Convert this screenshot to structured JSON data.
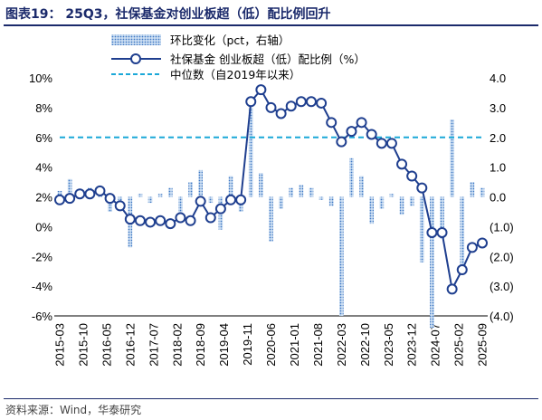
{
  "figure": {
    "title": "图表19： 25Q3，社保基金对创业板超（低）配比例回升",
    "source": "资料来源：Wind，华泰研究"
  },
  "colors": {
    "title": "#1b2a6b",
    "bar": "#6c9bd2",
    "line": "#1f3f8f",
    "marker_fill": "#ffffff",
    "median": "#1ba8d8"
  },
  "chart_data": {
    "type": "bar+line",
    "title": "",
    "legend_position": "top",
    "left_axis": {
      "range": [
        -6,
        10
      ],
      "ticks": [
        "10%",
        "8%",
        "6%",
        "4%",
        "2%",
        "0%",
        "-2%",
        "-4%",
        "-6%"
      ]
    },
    "right_axis": {
      "range": [
        -4,
        4
      ],
      "ticks": [
        "4.0",
        "3.0",
        "2.0",
        "1.0",
        "0.0",
        "(1.0)",
        "(2.0)",
        "(3.0)",
        "(4.0)"
      ]
    },
    "x": [
      "2015-03",
      "2015-06",
      "2015-09",
      "2015-12",
      "2016-03",
      "2016-06",
      "2016-09",
      "2016-12",
      "2017-03",
      "2017-06",
      "2017-09",
      "2017-12",
      "2018-03",
      "2018-06",
      "2018-09",
      "2018-12",
      "2019-03",
      "2019-06",
      "2019-09",
      "2019-12",
      "2020-03",
      "2020-06",
      "2020-09",
      "2020-12",
      "2021-03",
      "2021-06",
      "2021-09",
      "2021-12",
      "2022-03",
      "2022-06",
      "2022-09",
      "2022-12",
      "2023-03",
      "2023-06",
      "2023-09",
      "2023-12",
      "2024-03",
      "2024-06",
      "2024-09",
      "2024-12",
      "2025-03",
      "2025-06",
      "2025-09"
    ],
    "x_tick_labels": [
      "2015-03",
      "2015-10",
      "2016-05",
      "2016-12",
      "2017-07",
      "2018-02",
      "2018-09",
      "2019-04",
      "2019-11",
      "2020-06",
      "2021-01",
      "2021-08",
      "2022-03",
      "2022-10",
      "2023-05",
      "2023-12",
      "2024-07",
      "2025-02",
      "2025-09"
    ],
    "series": [
      {
        "name": "环比变化（pct，右轴）",
        "type": "bar",
        "axis": "right",
        "values": [
          0.2,
          0.6,
          0.2,
          0.3,
          0.2,
          -0.5,
          -0.4,
          -1.7,
          0.1,
          -0.2,
          0.1,
          0.3,
          -0.6,
          0.5,
          0.9,
          -0.2,
          -1.1,
          0.7,
          -0.5,
          3.0,
          0.8,
          -1.5,
          -0.4,
          0.3,
          0.4,
          0.3,
          -0.1,
          -0.3,
          -4.0,
          1.3,
          0.7,
          -0.9,
          -0.4,
          0.1,
          -0.6,
          -0.3,
          -2.2,
          -4.4,
          -1.4,
          2.6,
          -2.3,
          0.5,
          0.3
        ]
      },
      {
        "name": "社保基金 创业板超（低）配比例（%）",
        "type": "line",
        "axis": "left",
        "values": [
          1.8,
          1.9,
          2.2,
          2.2,
          2.4,
          1.9,
          1.4,
          0.5,
          0.4,
          0.3,
          0.4,
          0.2,
          0.6,
          0.4,
          1.7,
          0.6,
          1.2,
          1.8,
          1.8,
          8.4,
          9.2,
          8.0,
          7.6,
          8.1,
          8.4,
          8.4,
          8.3,
          7.0,
          5.7,
          6.4,
          7.0,
          6.2,
          5.6,
          5.6,
          4.2,
          3.4,
          2.6,
          -0.4,
          -0.4,
          -4.2,
          -2.9,
          -1.4,
          -1.1
        ]
      },
      {
        "name": "中位数（自2019年以来）",
        "type": "line",
        "style": "dashed",
        "axis": "left",
        "value": 6.0
      }
    ]
  }
}
